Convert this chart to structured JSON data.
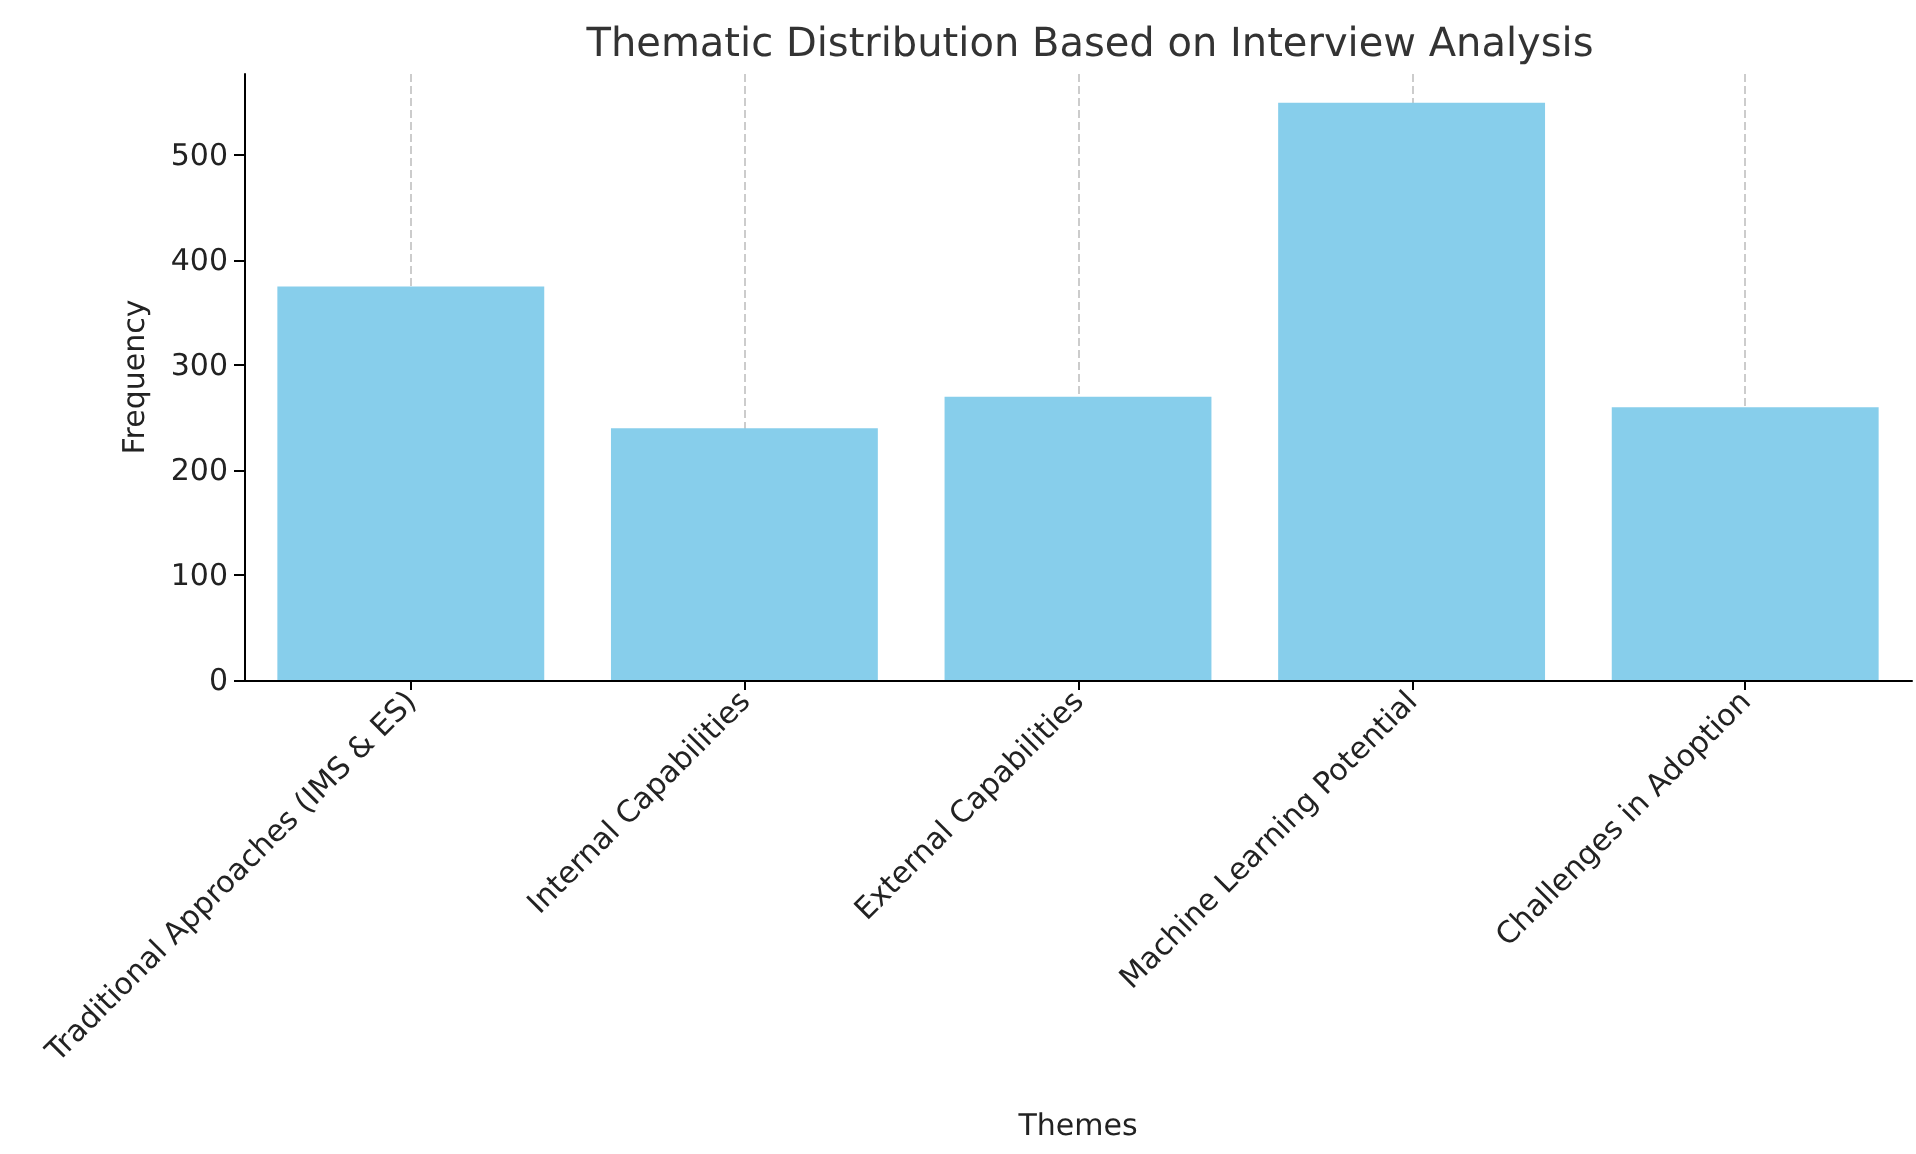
{
  "chart_data": {
    "type": "bar",
    "title": "Thematic Distribution Based on Interview Analysis",
    "xlabel": "Themes",
    "ylabel": "Frequency",
    "categories": [
      "Traditional Approaches (IMS & ES)",
      "Internal Capabilities",
      "External Capabilities",
      "Machine Learning Potential",
      "Challenges in Adoption"
    ],
    "values": [
      375,
      240,
      270,
      550,
      260
    ],
    "color": "#87ceeb",
    "ylim": [
      0,
      577.5
    ],
    "yticks": [
      0,
      100,
      200,
      300,
      400,
      500
    ],
    "grid": "x"
  }
}
